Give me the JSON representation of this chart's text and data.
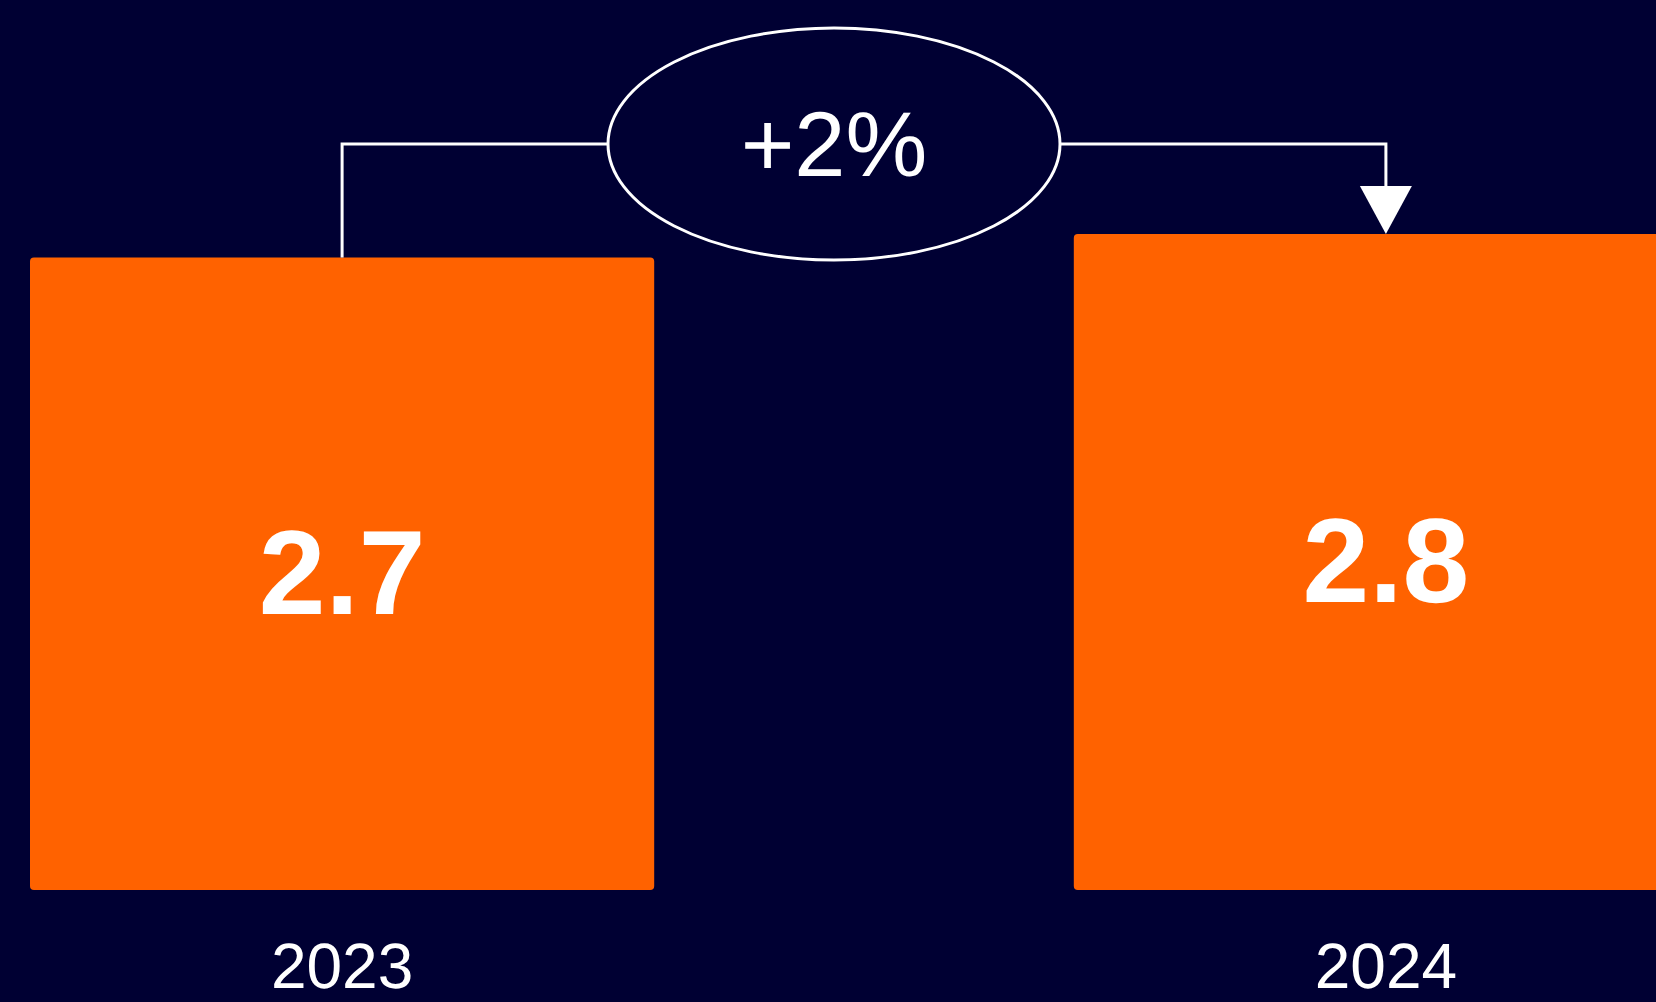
{
  "chart_data": {
    "type": "bar",
    "categories": [
      "2023",
      "2024"
    ],
    "values": [
      2.7,
      2.8
    ],
    "color": "#ff6200",
    "data_labels": true,
    "annotations": [
      "+2%"
    ]
  }
}
